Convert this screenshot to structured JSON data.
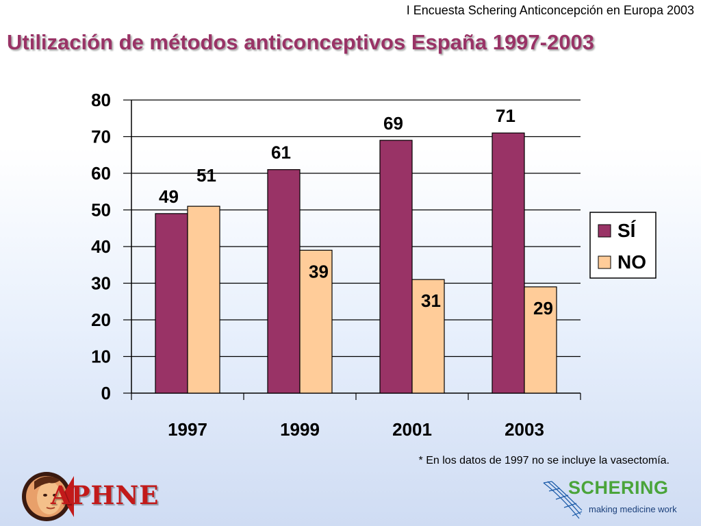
{
  "header": {
    "survey_caption": "I Encuesta Schering Anticoncepción en Europa 2003",
    "title": "Utilización de métodos anticonceptivos España 1997-2003"
  },
  "chart_data": {
    "type": "bar",
    "categories": [
      "1997",
      "1999",
      "2001",
      "2003"
    ],
    "series": [
      {
        "name": "SÍ",
        "color": "#993366",
        "values": [
          49,
          61,
          69,
          71
        ]
      },
      {
        "name": "NO",
        "color": "#ffcc99",
        "values": [
          51,
          39,
          31,
          29
        ]
      }
    ],
    "y_ticks": [
      "0",
      "10",
      "20",
      "30",
      "40",
      "50",
      "60",
      "70",
      "80"
    ],
    "ylim": [
      0,
      80
    ],
    "grid": true,
    "legend_position": "right",
    "data_labels": true
  },
  "footnote": "* En los datos de 1997 no se incluye la vasectomía.",
  "logos": {
    "left": {
      "text": "APHNE"
    },
    "right": {
      "name": "SCHERING",
      "tagline": "making medicine work"
    }
  }
}
